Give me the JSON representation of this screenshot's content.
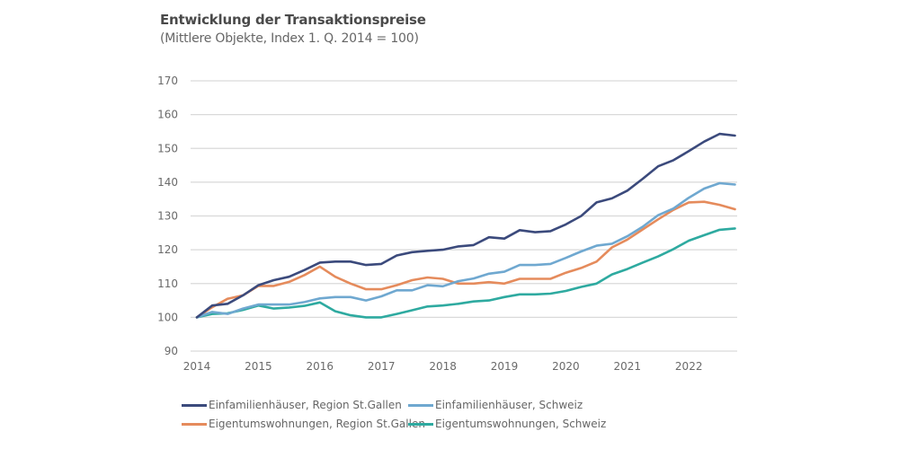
{
  "chart_data": {
    "type": "line",
    "title": "Entwicklung der Transaktionspreise",
    "subtitle": "(Mittlere Objekte, Index 1. Q. 2014 = 100)",
    "xlabel": "",
    "ylabel": "",
    "x_unit": "quarter",
    "x_start": "2014 Q1",
    "x_ticks": [
      "2014",
      "2015",
      "2016",
      "2017",
      "2018",
      "2019",
      "2020",
      "2021",
      "2022"
    ],
    "y_ticks": [
      90,
      100,
      110,
      120,
      130,
      140,
      150,
      160,
      170
    ],
    "ylim": [
      90,
      170
    ],
    "grid": true,
    "legend_position": "bottom",
    "series": [
      {
        "name": "Einfamilienhäuser, Region St.Gallen",
        "color": "#3b4a7c",
        "values": [
          100,
          103.5,
          104,
          106.5,
          109.5,
          111,
          112,
          114,
          116.2,
          116.5,
          116.5,
          115.5,
          115.8,
          118.3,
          119.3,
          119.7,
          120,
          121,
          121.4,
          123.7,
          123.3,
          125.8,
          125.2,
          125.5,
          127.5,
          130,
          134,
          135.2,
          137.5,
          141,
          144.7,
          146.5,
          149.2,
          152,
          154.3,
          153.8
        ]
      },
      {
        "name": "Einfamilienhäuser, Schweiz",
        "color": "#6fa8d0",
        "values": [
          100,
          101.6,
          101,
          102.6,
          103.8,
          103.8,
          103.8,
          104.5,
          105.6,
          106,
          106,
          105,
          106.2,
          108,
          108,
          109.5,
          109.2,
          110.7,
          111.5,
          112.9,
          113.5,
          115.5,
          115.5,
          115.8,
          117.6,
          119.5,
          121.2,
          121.8,
          124,
          126.8,
          130.2,
          132.2,
          135.4,
          138.1,
          139.7,
          139.3
        ]
      },
      {
        "name": "Eigentumswohnungen, Region St.Gallen",
        "color": "#e58b5c",
        "values": [
          100,
          103,
          105.5,
          106.5,
          109.3,
          109.3,
          110.5,
          112.5,
          115,
          112,
          110,
          108.3,
          108.3,
          109.5,
          111,
          111.8,
          111.4,
          110,
          110,
          110.4,
          110,
          111.4,
          111.4,
          111.4,
          113.2,
          114.6,
          116.5,
          120.7,
          123,
          126,
          129,
          131.8,
          134,
          134.2,
          133.3,
          132
        ]
      },
      {
        "name": "Eigentumswohnungen, Schweiz",
        "color": "#2eaaa0",
        "values": [
          100,
          101,
          101.2,
          102.2,
          103.5,
          102.6,
          102.9,
          103.4,
          104.4,
          101.8,
          100.6,
          100,
          100,
          101,
          102.1,
          103.2,
          103.5,
          104,
          104.7,
          105,
          106,
          106.8,
          106.8,
          107,
          107.8,
          109,
          110,
          112.7,
          114.3,
          116.2,
          118,
          120.2,
          122.7,
          124.3,
          125.9,
          126.3
        ]
      }
    ]
  },
  "colors": {
    "grid": "#d9d9d9",
    "tick_text": "#6a6a6a"
  }
}
